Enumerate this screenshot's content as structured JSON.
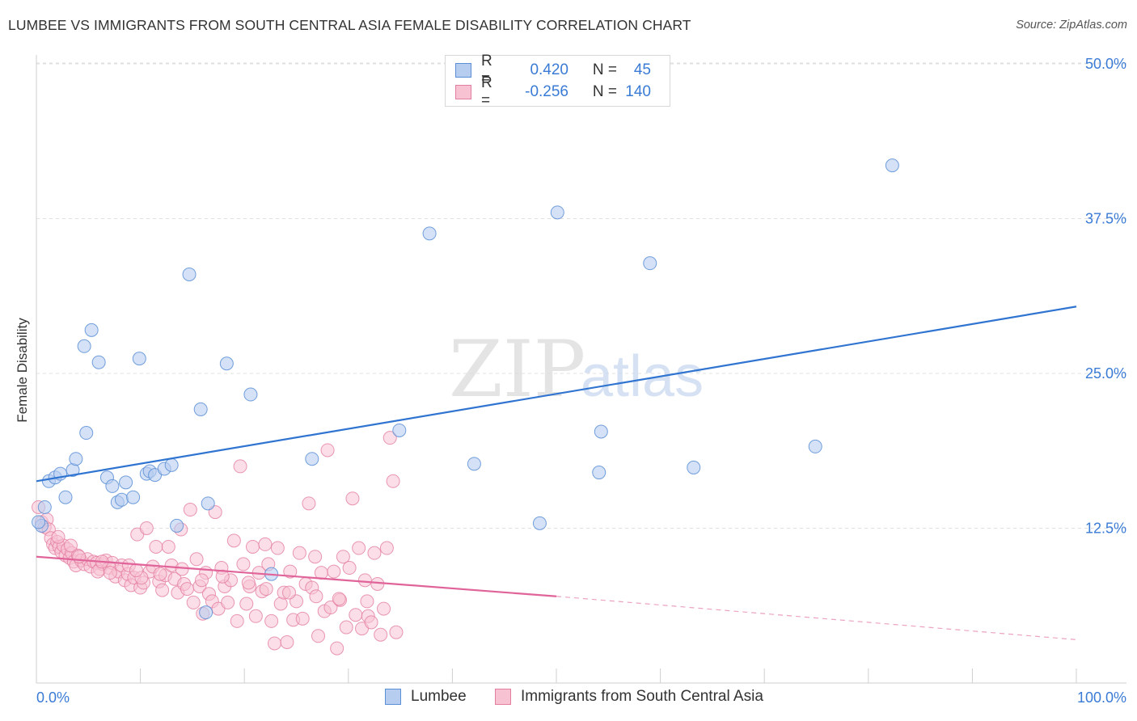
{
  "title": "LUMBEE VS IMMIGRANTS FROM SOUTH CENTRAL ASIA FEMALE DISABILITY CORRELATION CHART",
  "source": "Source: ZipAtlas.com",
  "watermark": {
    "zip": "ZIP",
    "atlas": "atlas"
  },
  "stats": [
    {
      "r_label": "R =",
      "r_value": "0.420",
      "n_label": "N =",
      "n_value": "45",
      "color": "#5b8fd6",
      "fill": "#b7cdf0"
    },
    {
      "r_label": "R =",
      "r_value": "-0.256",
      "n_label": "N =",
      "n_value": "140",
      "color": "#e37ea0",
      "fill": "#f7c3d3"
    }
  ],
  "legend": [
    {
      "label": "Lumbee",
      "color": "#5b8fd6",
      "fill": "#b7cdf0"
    },
    {
      "label": "Immigrants from South Central Asia",
      "color": "#e37ea0",
      "fill": "#f7c3d3"
    }
  ],
  "chart_data": {
    "type": "scatter",
    "title": "LUMBEE VS IMMIGRANTS FROM SOUTH CENTRAL ASIA FEMALE DISABILITY CORRELATION CHART",
    "xlabel": "",
    "ylabel": "Female Disability",
    "xlim": [
      0,
      100
    ],
    "ylim": [
      0,
      50
    ],
    "x_tick_labels": [
      "0.0%",
      "100.0%"
    ],
    "y_ticks": [
      12.5,
      25.0,
      37.5,
      50.0
    ],
    "y_tick_labels": [
      "12.5%",
      "25.0%",
      "37.5%",
      "50.0%"
    ],
    "grid": "horizontal dashed",
    "legend_position": "bottom-center",
    "series": [
      {
        "name": "Lumbee",
        "color": "#5b8fd6",
        "fill": "#b7cdf0",
        "points": [
          [
            0.5,
            12.7
          ],
          [
            0.8,
            14.2
          ],
          [
            1.2,
            16.3
          ],
          [
            1.8,
            16.6
          ],
          [
            2.3,
            16.9
          ],
          [
            2.8,
            15.0
          ],
          [
            3.5,
            17.2
          ],
          [
            3.8,
            18.1
          ],
          [
            4.6,
            27.2
          ],
          [
            4.8,
            20.2
          ],
          [
            5.3,
            28.5
          ],
          [
            6.0,
            25.9
          ],
          [
            6.8,
            16.6
          ],
          [
            7.3,
            15.9
          ],
          [
            7.8,
            14.6
          ],
          [
            8.2,
            14.8
          ],
          [
            8.6,
            16.2
          ],
          [
            9.3,
            15.0
          ],
          [
            9.9,
            26.2
          ],
          [
            10.6,
            16.9
          ],
          [
            10.9,
            17.1
          ],
          [
            11.4,
            16.8
          ],
          [
            12.3,
            17.3
          ],
          [
            13.0,
            17.6
          ],
          [
            13.5,
            12.7
          ],
          [
            14.7,
            33.0
          ],
          [
            15.8,
            22.1
          ],
          [
            16.3,
            5.7
          ],
          [
            16.5,
            14.5
          ],
          [
            18.3,
            25.8
          ],
          [
            20.6,
            23.3
          ],
          [
            22.6,
            8.8
          ],
          [
            26.5,
            18.1
          ],
          [
            34.9,
            20.4
          ],
          [
            37.8,
            36.3
          ],
          [
            42.1,
            17.7
          ],
          [
            48.4,
            12.9
          ],
          [
            50.1,
            38.0
          ],
          [
            54.1,
            17.0
          ],
          [
            54.3,
            20.3
          ],
          [
            59.0,
            33.9
          ],
          [
            63.2,
            17.4
          ],
          [
            74.9,
            19.1
          ],
          [
            82.3,
            41.8
          ],
          [
            0.2,
            13.0
          ]
        ],
        "trend": {
          "x": [
            0,
            100
          ],
          "y": [
            16.3,
            30.4
          ]
        }
      },
      {
        "name": "Immigrants from South Central Asia",
        "color": "#e37ea0",
        "fill": "#f7c3d3",
        "points": [
          [
            0.2,
            14.2
          ],
          [
            0.5,
            13.0
          ],
          [
            0.8,
            12.6
          ],
          [
            1.0,
            13.2
          ],
          [
            1.2,
            12.4
          ],
          [
            1.4,
            11.7
          ],
          [
            1.6,
            11.2
          ],
          [
            1.8,
            10.9
          ],
          [
            2.0,
            11.4
          ],
          [
            2.2,
            11.0
          ],
          [
            2.4,
            10.6
          ],
          [
            2.6,
            11.1
          ],
          [
            2.8,
            10.3
          ],
          [
            3.0,
            10.8
          ],
          [
            3.2,
            10.1
          ],
          [
            3.4,
            10.5
          ],
          [
            3.6,
            9.8
          ],
          [
            3.8,
            9.5
          ],
          [
            4.0,
            10.3
          ],
          [
            4.3,
            9.9
          ],
          [
            4.6,
            9.6
          ],
          [
            4.9,
            10.0
          ],
          [
            5.2,
            9.4
          ],
          [
            5.5,
            9.8
          ],
          [
            5.8,
            9.7
          ],
          [
            6.1,
            9.2
          ],
          [
            6.4,
            9.6
          ],
          [
            6.7,
            9.9
          ],
          [
            7.0,
            9.3
          ],
          [
            7.3,
            9.7
          ],
          [
            7.6,
            8.6
          ],
          [
            7.9,
            9.0
          ],
          [
            8.2,
            9.5
          ],
          [
            8.5,
            8.3
          ],
          [
            8.8,
            8.8
          ],
          [
            9.1,
            7.9
          ],
          [
            9.4,
            8.5
          ],
          [
            9.7,
            12.0
          ],
          [
            10.0,
            7.7
          ],
          [
            10.3,
            8.1
          ],
          [
            10.6,
            12.5
          ],
          [
            10.9,
            9.0
          ],
          [
            11.2,
            9.4
          ],
          [
            11.5,
            11.0
          ],
          [
            11.8,
            8.2
          ],
          [
            12.1,
            7.5
          ],
          [
            12.4,
            8.7
          ],
          [
            12.7,
            11.0
          ],
          [
            13.0,
            9.5
          ],
          [
            13.3,
            8.4
          ],
          [
            13.6,
            7.3
          ],
          [
            13.9,
            12.4
          ],
          [
            14.2,
            8.0
          ],
          [
            14.5,
            7.6
          ],
          [
            14.8,
            14.0
          ],
          [
            15.1,
            6.5
          ],
          [
            15.4,
            10.0
          ],
          [
            15.7,
            7.8
          ],
          [
            16.0,
            5.6
          ],
          [
            16.3,
            8.9
          ],
          [
            16.6,
            7.2
          ],
          [
            16.9,
            6.6
          ],
          [
            17.2,
            13.8
          ],
          [
            17.5,
            6.0
          ],
          [
            17.8,
            9.3
          ],
          [
            18.1,
            7.8
          ],
          [
            18.4,
            6.5
          ],
          [
            18.7,
            8.3
          ],
          [
            19.0,
            11.5
          ],
          [
            19.3,
            5.0
          ],
          [
            19.6,
            17.5
          ],
          [
            19.9,
            9.6
          ],
          [
            20.2,
            6.4
          ],
          [
            20.5,
            7.8
          ],
          [
            20.8,
            11.0
          ],
          [
            21.1,
            5.4
          ],
          [
            21.4,
            8.9
          ],
          [
            21.7,
            7.4
          ],
          [
            22.0,
            11.2
          ],
          [
            22.3,
            9.6
          ],
          [
            22.6,
            5.0
          ],
          [
            22.9,
            3.2
          ],
          [
            23.2,
            10.9
          ],
          [
            23.5,
            6.4
          ],
          [
            23.8,
            7.3
          ],
          [
            24.1,
            3.3
          ],
          [
            24.4,
            9.0
          ],
          [
            24.7,
            5.1
          ],
          [
            25.0,
            6.6
          ],
          [
            25.3,
            10.5
          ],
          [
            25.6,
            5.2
          ],
          [
            25.9,
            8.0
          ],
          [
            26.2,
            14.5
          ],
          [
            26.5,
            7.7
          ],
          [
            26.8,
            10.2
          ],
          [
            27.1,
            3.8
          ],
          [
            27.4,
            8.9
          ],
          [
            27.7,
            5.8
          ],
          [
            28.0,
            18.8
          ],
          [
            28.3,
            6.1
          ],
          [
            28.6,
            9.0
          ],
          [
            28.9,
            2.8
          ],
          [
            29.2,
            6.7
          ],
          [
            29.5,
            10.2
          ],
          [
            29.8,
            4.5
          ],
          [
            30.1,
            9.3
          ],
          [
            30.4,
            14.9
          ],
          [
            30.7,
            5.5
          ],
          [
            31.0,
            10.9
          ],
          [
            31.3,
            4.4
          ],
          [
            31.6,
            8.3
          ],
          [
            31.9,
            5.4
          ],
          [
            32.2,
            4.9
          ],
          [
            32.5,
            10.5
          ],
          [
            32.8,
            8.0
          ],
          [
            33.1,
            3.9
          ],
          [
            33.4,
            6.0
          ],
          [
            33.7,
            10.9
          ],
          [
            34.0,
            19.8
          ],
          [
            34.3,
            16.3
          ],
          [
            34.6,
            4.1
          ],
          [
            2.1,
            11.8
          ],
          [
            3.3,
            11.1
          ],
          [
            4.1,
            10.2
          ],
          [
            5.9,
            9.0
          ],
          [
            7.1,
            8.9
          ],
          [
            8.9,
            9.5
          ],
          [
            10.1,
            8.5
          ],
          [
            11.9,
            8.8
          ],
          [
            14.0,
            9.2
          ],
          [
            15.9,
            8.3
          ],
          [
            17.9,
            8.6
          ],
          [
            20.4,
            8.1
          ],
          [
            22.1,
            7.6
          ],
          [
            24.3,
            7.3
          ],
          [
            26.9,
            7.0
          ],
          [
            29.1,
            6.8
          ],
          [
            31.8,
            6.6
          ],
          [
            6.3,
            9.8
          ],
          [
            9.6,
            9.1
          ]
        ],
        "trend": {
          "x": [
            0,
            50
          ],
          "y": [
            10.2,
            7.0
          ]
        },
        "trend_extension": {
          "x": [
            50,
            100
          ],
          "y": [
            7.0,
            3.5
          ]
        }
      }
    ]
  }
}
